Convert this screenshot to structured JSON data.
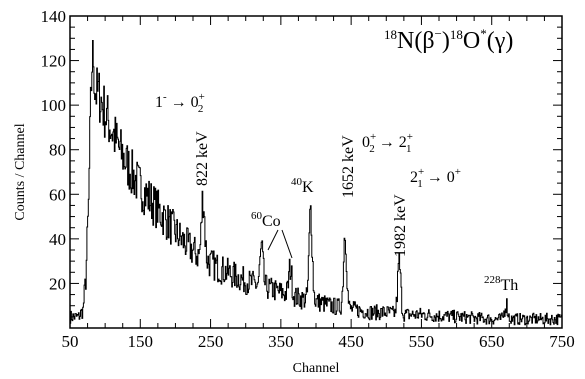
{
  "chart_data": {
    "type": "line",
    "xlabel": "Channel",
    "ylabel": "Counts / Channel",
    "xlim": [
      50,
      750
    ],
    "ylim": [
      0,
      140
    ],
    "x_ticks": [
      50,
      150,
      250,
      350,
      450,
      550,
      650,
      750
    ],
    "y_ticks": [
      20,
      40,
      60,
      80,
      100,
      120,
      140
    ],
    "reaction_label": {
      "pre": "18",
      "a": "N(β",
      "b": "−",
      "c": ")",
      "d": "18",
      "e": "O",
      "f": "*",
      "g": "(γ)"
    },
    "peaks": [
      {
        "channel": 82,
        "counts": 129
      },
      {
        "channel": 239,
        "counts": 59
      },
      {
        "channel": 322,
        "counts": 35
      },
      {
        "channel": 363,
        "counts": 27
      },
      {
        "channel": 392,
        "counts": 53
      },
      {
        "channel": 441,
        "counts": 44
      },
      {
        "channel": 518,
        "counts": 29
      },
      {
        "channel": 670,
        "counts": 11
      }
    ],
    "continuum": [
      [
        50,
        5
      ],
      [
        62,
        5
      ],
      [
        68,
        8
      ],
      [
        72,
        22
      ],
      [
        76,
        55
      ],
      [
        78,
        85
      ],
      [
        80,
        110
      ],
      [
        82,
        129
      ],
      [
        85,
        108
      ],
      [
        88,
        105
      ],
      [
        92,
        104
      ],
      [
        96,
        100
      ],
      [
        100,
        96
      ],
      [
        110,
        88
      ],
      [
        120,
        80
      ],
      [
        130,
        74
      ],
      [
        140,
        68
      ],
      [
        150,
        63
      ],
      [
        160,
        59
      ],
      [
        170,
        55
      ],
      [
        180,
        51
      ],
      [
        190,
        47
      ],
      [
        200,
        43
      ],
      [
        210,
        39
      ],
      [
        220,
        36
      ],
      [
        230,
        33
      ],
      [
        245,
        30
      ],
      [
        260,
        27
      ],
      [
        280,
        24
      ],
      [
        300,
        21
      ],
      [
        320,
        19
      ],
      [
        340,
        17
      ],
      [
        360,
        15
      ],
      [
        380,
        13
      ],
      [
        400,
        12
      ],
      [
        420,
        10
      ],
      [
        440,
        9
      ],
      [
        460,
        8
      ],
      [
        480,
        7
      ],
      [
        500,
        7
      ],
      [
        520,
        6
      ],
      [
        550,
        6
      ],
      [
        600,
        5
      ],
      [
        650,
        4
      ],
      [
        700,
        4
      ],
      [
        750,
        4
      ]
    ],
    "annotations": {
      "t1": {
        "a": "1",
        "b": "-",
        "c": " → 0",
        "d": "+",
        "e": "2"
      },
      "e822": "822 keV",
      "co60": {
        "a": "60",
        "b": "Co"
      },
      "k40": {
        "a": "40",
        "b": "K"
      },
      "e1652": "1652 keV",
      "t2": {
        "a": "0",
        "b": "+",
        "c": "2",
        "d": " → 2",
        "e": "+",
        "f": "1"
      },
      "e1982": "1982 keV",
      "t3": {
        "a": "2",
        "b": "+",
        "c": "1",
        "d": " → 0",
        "e": "+"
      },
      "th228": {
        "a": "228",
        "b": "Th"
      }
    }
  }
}
